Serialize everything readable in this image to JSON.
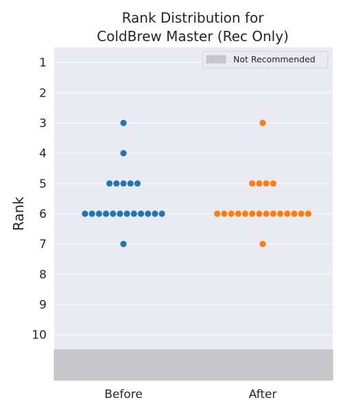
{
  "chart_data": {
    "type": "scatter",
    "title_lines": [
      "Rank Distribution for",
      "ColdBrew Master (Rec Only)"
    ],
    "xlabel": "",
    "ylabel": "Rank",
    "categories": [
      "Before",
      "After"
    ],
    "y_ticks": [
      "1",
      "2",
      "3",
      "4",
      "5",
      "6",
      "7",
      "8",
      "9",
      "10"
    ],
    "ylim": [
      0.5,
      11.5
    ],
    "y_inverted": true,
    "grid": true,
    "legend_position": "top-right",
    "legend": [
      {
        "label": "Not Recommended",
        "color": "#c8c8cc"
      }
    ],
    "not_recommended_band": [
      10.5,
      11.5
    ],
    "series": [
      {
        "category": "Before",
        "color": "#1f77b4",
        "values": [
          3,
          4,
          5,
          5,
          5,
          5,
          5,
          6,
          6,
          6,
          6,
          6,
          6,
          6,
          6,
          6,
          6,
          6,
          6,
          7
        ]
      },
      {
        "category": "After",
        "color": "#ff7f0e",
        "values": [
          3,
          5,
          5,
          5,
          5,
          6,
          6,
          6,
          6,
          6,
          6,
          6,
          6,
          6,
          6,
          6,
          6,
          6,
          6,
          7
        ]
      }
    ],
    "colors": {
      "plot_background": "#eaeaf2",
      "grid": "#ffffff",
      "band": "#c8c8cc"
    }
  }
}
